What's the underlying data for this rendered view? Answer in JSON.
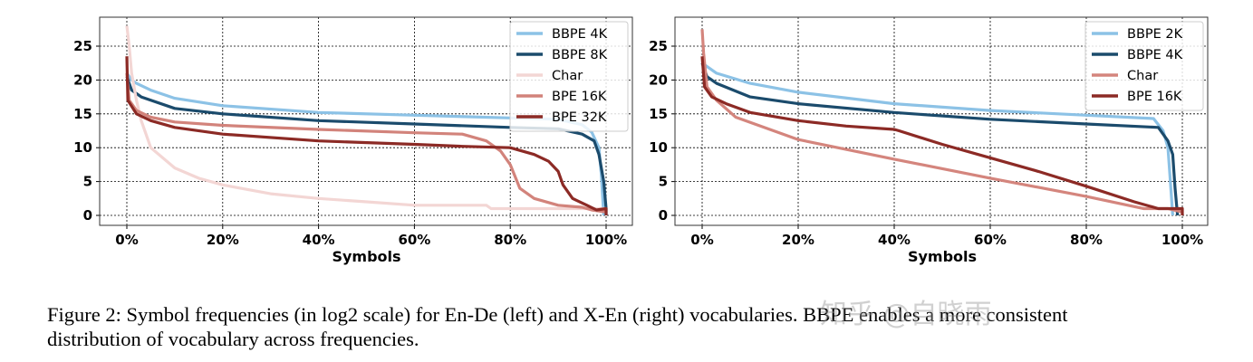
{
  "chart_data": [
    {
      "type": "line",
      "xlabel": "Symbols",
      "ylabel": "",
      "xlim": [
        0,
        100
      ],
      "ylim": [
        -1.3,
        29
      ],
      "xticks": [
        "0%",
        "20%",
        "40%",
        "60%",
        "80%",
        "100%"
      ],
      "yticks": [
        "0",
        "5",
        "10",
        "15",
        "20",
        "25"
      ],
      "grid": true,
      "legend_position": "top-right",
      "series": [
        {
          "name": "BBPE 4K",
          "color": "#8cc2e6",
          "points": [
            [
              0,
              21
            ],
            [
              1,
              20
            ],
            [
              2,
              19.5
            ],
            [
              5,
              18.5
            ],
            [
              10,
              17.3
            ],
            [
              20,
              16.2
            ],
            [
              40,
              15.2
            ],
            [
              60,
              14.8
            ],
            [
              80,
              14.4
            ],
            [
              90,
              14.2
            ],
            [
              95,
              13.4
            ],
            [
              97,
              12.3
            ],
            [
              98.5,
              10
            ],
            [
              99,
              6
            ],
            [
              99.5,
              0
            ]
          ]
        },
        {
          "name": "BBPE 8K",
          "color": "#1b4b6c",
          "points": [
            [
              0,
              20.5
            ],
            [
              1,
              18.5
            ],
            [
              3,
              17.5
            ],
            [
              10,
              15.8
            ],
            [
              20,
              15
            ],
            [
              40,
              14
            ],
            [
              60,
              13.5
            ],
            [
              80,
              13
            ],
            [
              90,
              12.8
            ],
            [
              95,
              12
            ],
            [
              97.5,
              11
            ],
            [
              98.5,
              9
            ],
            [
              99.5,
              5
            ],
            [
              100,
              1
            ],
            [
              100,
              0
            ]
          ]
        },
        {
          "name": "Char",
          "color": "#f3d6d4",
          "points": [
            [
              0,
              28
            ],
            [
              0.5,
              25
            ],
            [
              1,
              21
            ],
            [
              2,
              17
            ],
            [
              3,
              14
            ],
            [
              5,
              10
            ],
            [
              10,
              7
            ],
            [
              15,
              5.5
            ],
            [
              20,
              4.5
            ],
            [
              30,
              3.2
            ],
            [
              40,
              2.5
            ],
            [
              50,
              2
            ],
            [
              60,
              1.5
            ],
            [
              75,
              1.5
            ],
            [
              76,
              1
            ],
            [
              100,
              1
            ]
          ]
        },
        {
          "name": "BPE 16K",
          "color": "#d2837b",
          "points": [
            [
              0,
              21
            ],
            [
              0.5,
              17
            ],
            [
              2,
              15.5
            ],
            [
              5,
              14.5
            ],
            [
              10,
              13.8
            ],
            [
              20,
              13.3
            ],
            [
              40,
              12.7
            ],
            [
              60,
              12.2
            ],
            [
              70,
              12
            ],
            [
              75,
              11
            ],
            [
              78,
              9.5
            ],
            [
              80,
              7.5
            ],
            [
              82,
              4
            ],
            [
              85,
              2.5
            ],
            [
              90,
              1.5
            ],
            [
              95,
              1.2
            ],
            [
              97,
              0.8
            ],
            [
              100,
              0.5
            ]
          ]
        },
        {
          "name": "BPE 32K",
          "color": "#8c2a25",
          "points": [
            [
              0,
              23.5
            ],
            [
              0.2,
              17
            ],
            [
              2,
              15
            ],
            [
              5,
              14
            ],
            [
              10,
              13
            ],
            [
              20,
              12
            ],
            [
              40,
              11
            ],
            [
              60,
              10.5
            ],
            [
              70,
              10.2
            ],
            [
              80,
              10
            ],
            [
              85,
              9
            ],
            [
              88,
              8
            ],
            [
              90,
              6.5
            ],
            [
              91,
              4.5
            ],
            [
              93,
              2.5
            ],
            [
              96,
              1.5
            ],
            [
              98,
              0.8
            ],
            [
              100,
              1
            ],
            [
              100,
              0
            ]
          ]
        }
      ]
    },
    {
      "type": "line",
      "xlabel": "Symbols",
      "ylabel": "",
      "xlim": [
        0,
        100
      ],
      "ylim": [
        -1.3,
        29
      ],
      "xticks": [
        "0%",
        "20%",
        "40%",
        "60%",
        "80%",
        "100%"
      ],
      "yticks": [
        "0",
        "5",
        "10",
        "15",
        "20",
        "25"
      ],
      "grid": true,
      "legend_position": "top-right",
      "series": [
        {
          "name": "BBPE 2K",
          "color": "#8cc2e6",
          "points": [
            [
              0,
              22.5
            ],
            [
              1,
              22
            ],
            [
              3,
              21
            ],
            [
              10,
              19.5
            ],
            [
              20,
              18.2
            ],
            [
              40,
              16.5
            ],
            [
              60,
              15.5
            ],
            [
              80,
              14.8
            ],
            [
              94,
              14.3
            ],
            [
              96,
              12.5
            ],
            [
              97,
              10
            ],
            [
              97.5,
              5
            ],
            [
              98,
              0
            ]
          ]
        },
        {
          "name": "BBPE 4K",
          "color": "#1b4b6c",
          "points": [
            [
              0,
              22.5
            ],
            [
              1,
              20.5
            ],
            [
              3,
              19.5
            ],
            [
              10,
              17.5
            ],
            [
              20,
              16.5
            ],
            [
              40,
              15.2
            ],
            [
              60,
              14.2
            ],
            [
              80,
              13.5
            ],
            [
              95,
              13
            ],
            [
              97,
              11
            ],
            [
              98,
              9
            ],
            [
              98.5,
              4
            ],
            [
              99,
              0
            ]
          ]
        },
        {
          "name": "Char",
          "color": "#d4857d",
          "points": [
            [
              0,
              27.5
            ],
            [
              0.3,
              24
            ],
            [
              1,
              19
            ],
            [
              3,
              17
            ],
            [
              7,
              14.5
            ],
            [
              20,
              11.2
            ],
            [
              40,
              8.3
            ],
            [
              60,
              5.5
            ],
            [
              80,
              2.8
            ],
            [
              90,
              1.3
            ],
            [
              92,
              1
            ],
            [
              97,
              1
            ],
            [
              100,
              0.5
            ]
          ]
        },
        {
          "name": "BPE 16K",
          "color": "#8c2a25",
          "points": [
            [
              0,
              23.5
            ],
            [
              0.5,
              19
            ],
            [
              2,
              17.5
            ],
            [
              5,
              16.5
            ],
            [
              10,
              15.2
            ],
            [
              20,
              14
            ],
            [
              30,
              13.2
            ],
            [
              40,
              12.7
            ],
            [
              41,
              12.5
            ],
            [
              50,
              10.5
            ],
            [
              60,
              8.5
            ],
            [
              70,
              6.5
            ],
            [
              80,
              4.3
            ],
            [
              90,
              2
            ],
            [
              95,
              1
            ],
            [
              100,
              1
            ],
            [
              100,
              0
            ]
          ]
        }
      ]
    }
  ],
  "caption": {
    "line1": "Figure 2: Symbol frequencies (in log2 scale) for En-De (left) and X-En (right) vocabularies. BBPE enables a more consistent",
    "line2": "distribution of vocabulary across frequencies."
  },
  "watermark": "知乎 @自晓雨"
}
